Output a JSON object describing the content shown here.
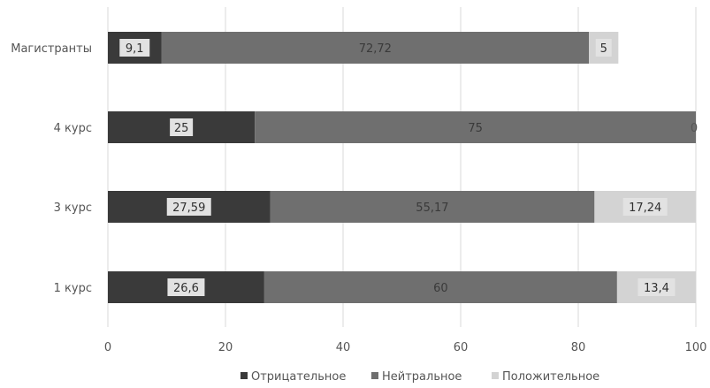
{
  "chart_data": {
    "type": "bar",
    "orientation": "horizontal",
    "stacked": true,
    "title": "",
    "xlabel": "",
    "ylabel": "",
    "xlim": [
      0,
      100
    ],
    "x_ticks": [
      "0",
      "20",
      "40",
      "60",
      "80",
      "100"
    ],
    "grid": "vertical",
    "legend_position": "bottom",
    "categories": [
      "Магистранты",
      "4 курс",
      "3 курс",
      "1 курс"
    ],
    "series": [
      {
        "name": "Отрицательное",
        "color": "#3a3a3a",
        "values": [
          9.1,
          25,
          27.59,
          26.6
        ],
        "labels": [
          "9,1",
          "25",
          "27,59",
          "26,6"
        ]
      },
      {
        "name": "Нейтральное",
        "color": "#6f6f6f",
        "values": [
          72.72,
          75,
          55.17,
          60
        ],
        "labels": [
          "72,72",
          "75",
          "55,17",
          "60"
        ]
      },
      {
        "name": "Положительное",
        "color": "#d3d3d3",
        "values": [
          5,
          0,
          17.24,
          13.4
        ],
        "labels": [
          "5",
          "0",
          "17,24",
          "13,4"
        ]
      }
    ]
  }
}
